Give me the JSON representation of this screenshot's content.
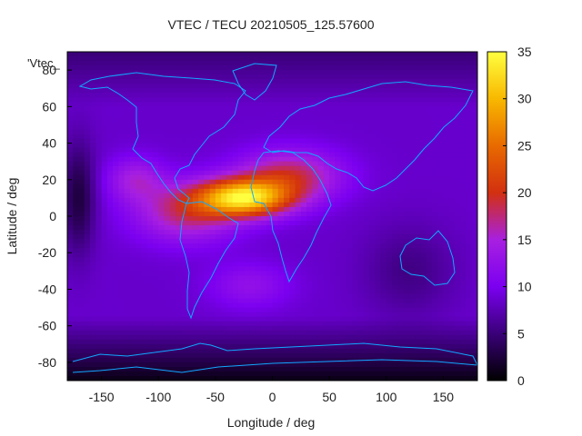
{
  "chart_data": {
    "type": "heatmap",
    "title": "VTEC / TECU 20210505_125.57600",
    "xlabel": "Longitude / deg",
    "ylabel": "Latitude / deg",
    "key_label": "'Vtec_",
    "xlim": [
      -180,
      180
    ],
    "ylim": [
      -90,
      90
    ],
    "x_ticks": [
      -150,
      -100,
      -50,
      0,
      50,
      100,
      150
    ],
    "y_ticks": [
      -80,
      -60,
      -40,
      -20,
      0,
      20,
      40,
      60,
      80
    ],
    "colorbar": {
      "range": [
        0,
        35
      ],
      "ticks": [
        0,
        5,
        10,
        15,
        20,
        25,
        30,
        35
      ],
      "palette": [
        "#000000",
        "#3a0078",
        "#7b00f0",
        "#a820e0",
        "#d23010",
        "#e86a00",
        "#f8b800",
        "#ffff40"
      ]
    },
    "grid": false,
    "peak": {
      "lon": -25,
      "lat": 10,
      "value": 34
    }
  }
}
